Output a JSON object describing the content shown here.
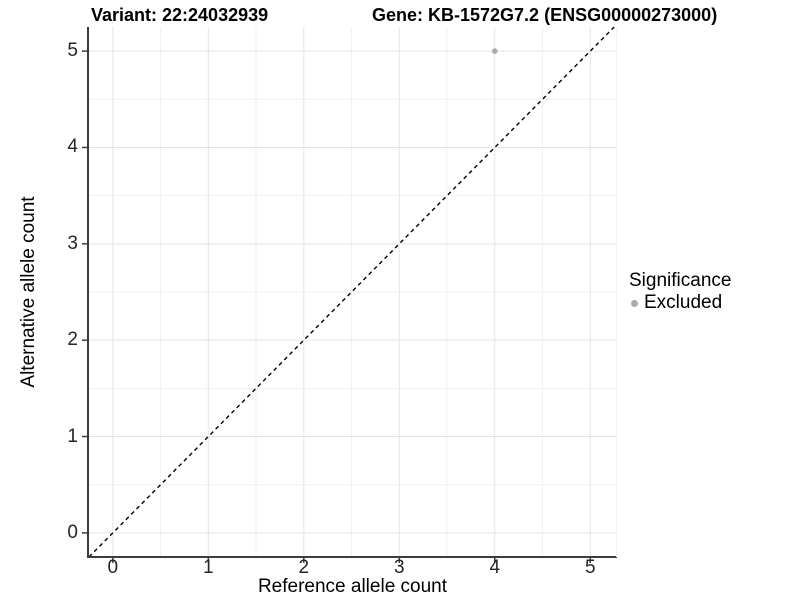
{
  "header": {
    "variant_title": "Variant: 22:24032939",
    "gene_title": "Gene: KB-1572G7.2 (ENSG00000273000)"
  },
  "chart_data": {
    "type": "scatter",
    "xlabel": "Reference allele count",
    "ylabel": "Alternative allele count",
    "xlim": [
      -0.26,
      5.28
    ],
    "ylim": [
      -0.25,
      5.25
    ],
    "xticks": [
      0,
      1,
      2,
      3,
      4,
      5
    ],
    "yticks": [
      0,
      1,
      2,
      3,
      4,
      5
    ],
    "x_minor": [
      0.5,
      1.5,
      2.5,
      3.5,
      4.5
    ],
    "y_minor": [
      0.5,
      1.5,
      2.5,
      3.5,
      4.5
    ],
    "grid": "major+minor",
    "points": [
      {
        "x": 4,
        "y": 5,
        "series": "Excluded"
      }
    ],
    "reference_line": {
      "kind": "identity",
      "slope": 1,
      "intercept": 0,
      "style": "dashed",
      "color": "#000000"
    },
    "legend": {
      "title": "Significance",
      "position": "right",
      "entries": [
        {
          "label": "Excluded",
          "color": "#aaaaaa"
        }
      ]
    }
  },
  "colors": {
    "background": "#ffffff",
    "axis_line": "#3c3c3c",
    "grid_major": "#e4e4e4",
    "grid_minor": "#f1f1f1",
    "tick_label": "#262626",
    "point": "#aaaaaa",
    "title_text": "#000000"
  }
}
